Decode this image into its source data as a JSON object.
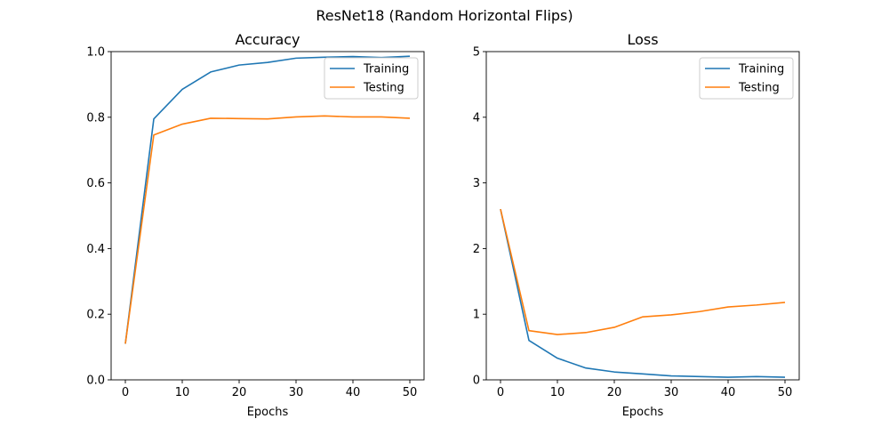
{
  "figure": {
    "suptitle": "ResNet18 (Random Horizontal Flips)"
  },
  "chart_data": [
    {
      "type": "line",
      "title": "Accuracy",
      "xlabel": "Epochs",
      "ylabel": "",
      "xlim": [
        -2.5,
        52.5
      ],
      "ylim": [
        0,
        1.0
      ],
      "xticks": [
        0,
        10,
        20,
        30,
        40,
        50
      ],
      "yticks": [
        0.0,
        0.2,
        0.4,
        0.6,
        0.8,
        1.0
      ],
      "ytick_labels": [
        "0.0",
        "0.2",
        "0.4",
        "0.6",
        "0.8",
        "1.0"
      ],
      "grid": false,
      "legend": "upper-right",
      "x": [
        0,
        5,
        10,
        15,
        20,
        25,
        30,
        35,
        40,
        45,
        50
      ],
      "series": [
        {
          "name": "Training",
          "color": "#1f77b4",
          "values": [
            0.11,
            0.795,
            0.885,
            0.938,
            0.959,
            0.967,
            0.98,
            0.983,
            0.985,
            0.982,
            0.986
          ]
        },
        {
          "name": "Testing",
          "color": "#ff7f0e",
          "values": [
            0.11,
            0.746,
            0.779,
            0.797,
            0.796,
            0.795,
            0.801,
            0.804,
            0.801,
            0.801,
            0.797
          ]
        }
      ]
    },
    {
      "type": "line",
      "title": "Loss",
      "xlabel": "Epochs",
      "ylabel": "",
      "xlim": [
        -2.5,
        52.5
      ],
      "ylim": [
        0,
        5
      ],
      "xticks": [
        0,
        10,
        20,
        30,
        40,
        50
      ],
      "yticks": [
        0,
        1,
        2,
        3,
        4,
        5
      ],
      "ytick_labels": [
        "0",
        "1",
        "2",
        "3",
        "4",
        "5"
      ],
      "grid": false,
      "legend": "upper-right",
      "x": [
        0,
        5,
        10,
        15,
        20,
        25,
        30,
        35,
        40,
        45,
        50
      ],
      "series": [
        {
          "name": "Training",
          "color": "#1f77b4",
          "values": [
            2.6,
            0.6,
            0.33,
            0.18,
            0.12,
            0.09,
            0.06,
            0.05,
            0.04,
            0.05,
            0.04
          ]
        },
        {
          "name": "Testing",
          "color": "#ff7f0e",
          "values": [
            2.6,
            0.75,
            0.69,
            0.72,
            0.8,
            0.96,
            0.99,
            1.04,
            1.11,
            1.14,
            1.18
          ]
        }
      ]
    }
  ]
}
